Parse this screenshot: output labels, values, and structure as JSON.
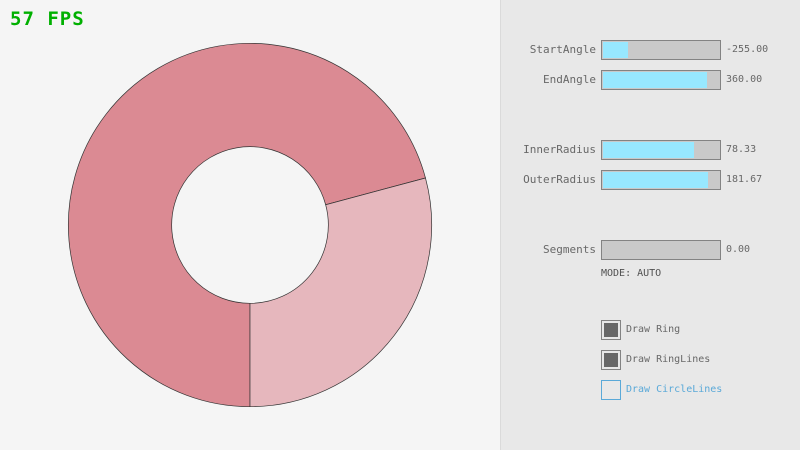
{
  "fps": "57 FPS",
  "ring": {
    "start_angle": -255,
    "end_angle": 360,
    "inner_radius": 78.33,
    "outer_radius": 181.67,
    "colors": {
      "primary": "#db8a93",
      "secondary": "#e6b7bd"
    }
  },
  "sliders": [
    {
      "label": "StartAngle",
      "value": "-255.00",
      "fraction": 0.217
    },
    {
      "label": "EndAngle",
      "value": "360.00",
      "fraction": 0.9
    },
    {
      "label": "InnerRadius",
      "value": "78.33",
      "fraction": 0.783
    },
    {
      "label": "OuterRadius",
      "value": "181.67",
      "fraction": 0.908
    },
    {
      "label": "Segments",
      "value": "0.00",
      "fraction": 0
    }
  ],
  "mode": "MODE: AUTO",
  "checkboxes": [
    {
      "label": "Draw Ring",
      "checked": true
    },
    {
      "label": "Draw RingLines",
      "checked": true
    },
    {
      "label": "Draw CircleLines",
      "checked": false,
      "focused": true,
      "color": "#5aa9d8"
    }
  ]
}
